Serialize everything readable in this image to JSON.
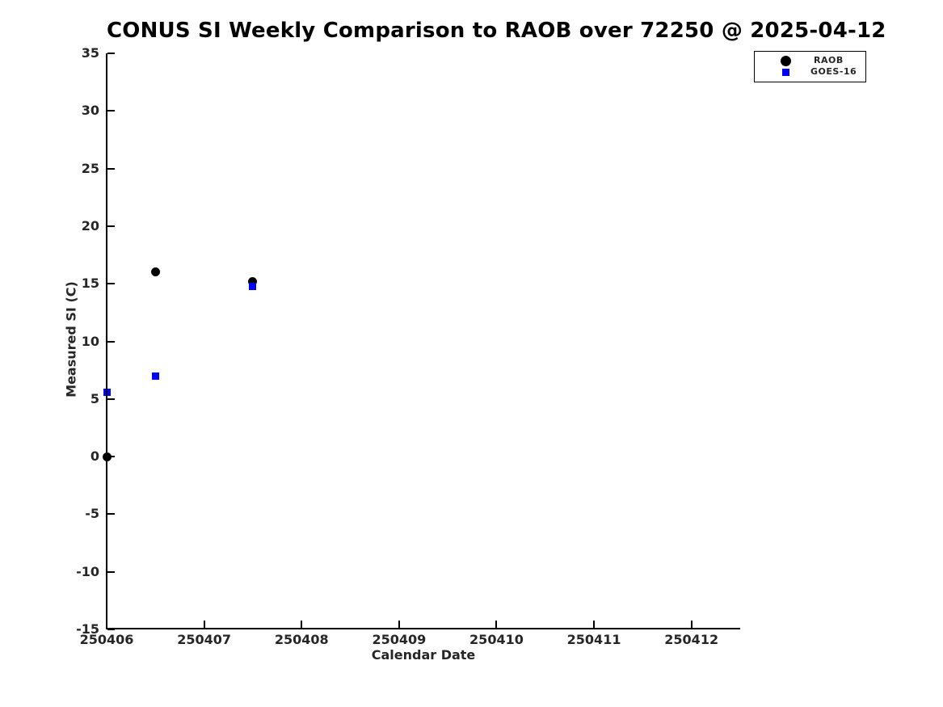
{
  "chart_data": {
    "type": "scatter",
    "title": "CONUS SI Weekly Comparison to RAOB over 72250 @ 2025-04-12",
    "xlabel": "Calendar Date",
    "ylabel": "Measured SI (C)",
    "xlim": [
      250406,
      250412.5
    ],
    "ylim": [
      -15,
      35
    ],
    "x_ticks": [
      250406,
      250407,
      250408,
      250409,
      250410,
      250411,
      250412
    ],
    "y_ticks": [
      35,
      30,
      25,
      20,
      15,
      10,
      5,
      0,
      -5,
      -10,
      -15
    ],
    "grid": false,
    "background": "#ffffff",
    "legend": {
      "position": "top-right-outside",
      "entries": [
        "RAOB",
        "GOES-16"
      ]
    },
    "series": [
      {
        "name": "RAOB",
        "marker": "circle",
        "color": "#000000",
        "marker_size": 11,
        "x": [
          250406.0,
          250406.5,
          250407.5
        ],
        "y": [
          0.0,
          16.0,
          15.2
        ]
      },
      {
        "name": "GOES-16",
        "marker": "square",
        "color": "#0000ff",
        "marker_size": 9,
        "x": [
          250406.0,
          250406.5,
          250407.5
        ],
        "y": [
          5.6,
          7.0,
          14.8
        ]
      }
    ]
  }
}
